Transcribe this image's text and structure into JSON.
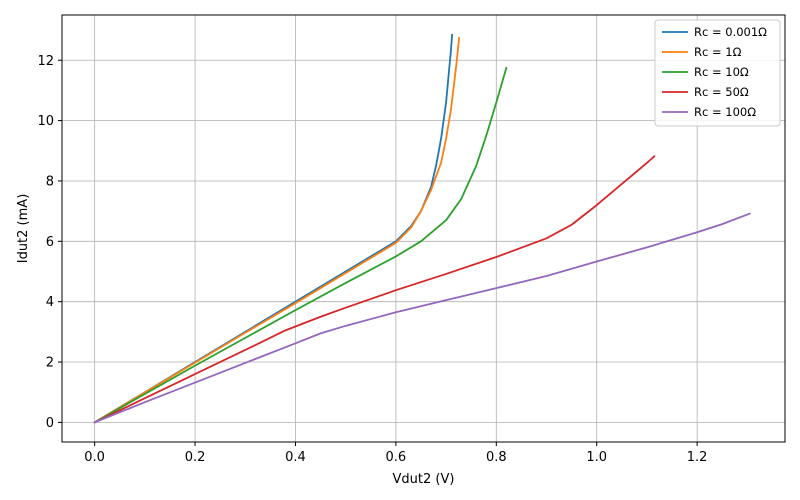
{
  "chart_data": {
    "type": "line",
    "title": "",
    "xlabel": "Vdut2 (V)",
    "ylabel": "Idut2 (mA)",
    "xlim": [
      -0.065,
      1.375
    ],
    "ylim": [
      -0.65,
      13.5
    ],
    "xticks": [
      0.0,
      0.2,
      0.4,
      0.6,
      0.8,
      1.0,
      1.2
    ],
    "xtick_labels": [
      "0.0",
      "0.2",
      "0.4",
      "0.6",
      "0.8",
      "1.0",
      "1.2"
    ],
    "yticks": [
      0,
      2,
      4,
      6,
      8,
      10,
      12
    ],
    "ytick_labels": [
      "0",
      "2",
      "4",
      "6",
      "8",
      "10",
      "12"
    ],
    "grid": true,
    "legend_position": "top-right",
    "series": [
      {
        "name": "Rc = 0.001Ω",
        "color": "#1f77b4",
        "points": [
          [
            0,
            0
          ],
          [
            0.1,
            1
          ],
          [
            0.2,
            2
          ],
          [
            0.3,
            3
          ],
          [
            0.4,
            4
          ],
          [
            0.5,
            5
          ],
          [
            0.6,
            6
          ],
          [
            0.63,
            6.5
          ],
          [
            0.65,
            7.0
          ],
          [
            0.67,
            7.8
          ],
          [
            0.68,
            8.5
          ],
          [
            0.69,
            9.4
          ],
          [
            0.7,
            10.6
          ],
          [
            0.705,
            11.5
          ],
          [
            0.71,
            12.4
          ],
          [
            0.712,
            12.85
          ]
        ]
      },
      {
        "name": "Rc = 1Ω",
        "color": "#ff7f0e",
        "points": [
          [
            0,
            0
          ],
          [
            0.1,
            0.99
          ],
          [
            0.2,
            1.98
          ],
          [
            0.3,
            2.97
          ],
          [
            0.4,
            3.95
          ],
          [
            0.5,
            4.95
          ],
          [
            0.6,
            5.95
          ],
          [
            0.63,
            6.45
          ],
          [
            0.65,
            7.0
          ],
          [
            0.67,
            7.7
          ],
          [
            0.69,
            8.6
          ],
          [
            0.7,
            9.4
          ],
          [
            0.71,
            10.4
          ],
          [
            0.72,
            11.8
          ],
          [
            0.726,
            12.75
          ]
        ]
      },
      {
        "name": "Rc = 10Ω",
        "color": "#2ca02c",
        "points": [
          [
            0,
            0
          ],
          [
            0.1,
            0.94
          ],
          [
            0.2,
            1.88
          ],
          [
            0.3,
            2.8
          ],
          [
            0.4,
            3.72
          ],
          [
            0.5,
            4.62
          ],
          [
            0.6,
            5.5
          ],
          [
            0.65,
            6.0
          ],
          [
            0.7,
            6.7
          ],
          [
            0.73,
            7.4
          ],
          [
            0.76,
            8.5
          ],
          [
            0.78,
            9.5
          ],
          [
            0.8,
            10.6
          ],
          [
            0.82,
            11.75
          ]
        ]
      },
      {
        "name": "Rc = 50Ω",
        "color": "#d62728",
        "points": [
          [
            0,
            0
          ],
          [
            0.1,
            0.8
          ],
          [
            0.2,
            1.6
          ],
          [
            0.3,
            2.4
          ],
          [
            0.38,
            3.05
          ],
          [
            0.45,
            3.5
          ],
          [
            0.5,
            3.8
          ],
          [
            0.6,
            4.38
          ],
          [
            0.7,
            4.92
          ],
          [
            0.8,
            5.48
          ],
          [
            0.9,
            6.1
          ],
          [
            0.95,
            6.55
          ],
          [
            1.0,
            7.2
          ],
          [
            1.05,
            7.9
          ],
          [
            1.1,
            8.6
          ],
          [
            1.115,
            8.82
          ]
        ]
      },
      {
        "name": "Rc = 100Ω",
        "color": "#9467bd",
        "points": [
          [
            0,
            0
          ],
          [
            0.1,
            0.67
          ],
          [
            0.2,
            1.32
          ],
          [
            0.3,
            1.97
          ],
          [
            0.4,
            2.62
          ],
          [
            0.45,
            2.95
          ],
          [
            0.5,
            3.2
          ],
          [
            0.6,
            3.65
          ],
          [
            0.7,
            4.05
          ],
          [
            0.8,
            4.45
          ],
          [
            0.9,
            4.85
          ],
          [
            1.0,
            5.33
          ],
          [
            1.1,
            5.8
          ],
          [
            1.2,
            6.3
          ],
          [
            1.25,
            6.57
          ],
          [
            1.305,
            6.92
          ]
        ]
      }
    ]
  }
}
